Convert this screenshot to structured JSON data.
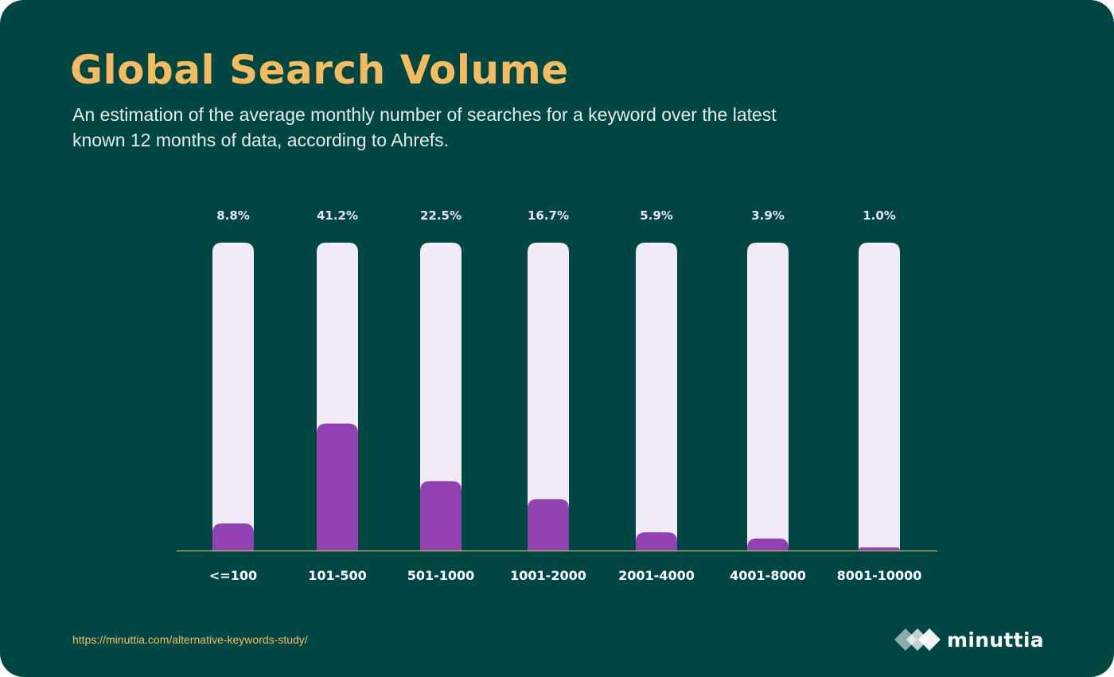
{
  "title": "Global Search Volume",
  "subtitle": "An estimation of the average monthly number of searches for a keyword over the latest known 12 months of data, according to Ahrefs.",
  "source_url": "https://minuttia.com/alternative-keywords-study/",
  "brand": {
    "name": "minuttia",
    "icon": "diamond-logo-icon"
  },
  "colors": {
    "background": "#004743",
    "title": "#f7bb5f",
    "bar_track": "#f1eaf7",
    "bar_fill": "#9241b2",
    "axis_line": "#c9b36a"
  },
  "chart_data": {
    "type": "bar",
    "categories": [
      "<=100",
      "101-500",
      "501-1000",
      "1001-2000",
      "2001-4000",
      "4001-8000",
      "8001-10000"
    ],
    "values": [
      8.8,
      41.2,
      22.5,
      16.7,
      5.9,
      3.9,
      1.0
    ],
    "value_labels": [
      "8.8%",
      "41.2%",
      "22.5%",
      "16.7%",
      "5.9%",
      "3.9%",
      "1.0%"
    ],
    "ylim": [
      0,
      100
    ],
    "grid": false,
    "legend": "none"
  }
}
